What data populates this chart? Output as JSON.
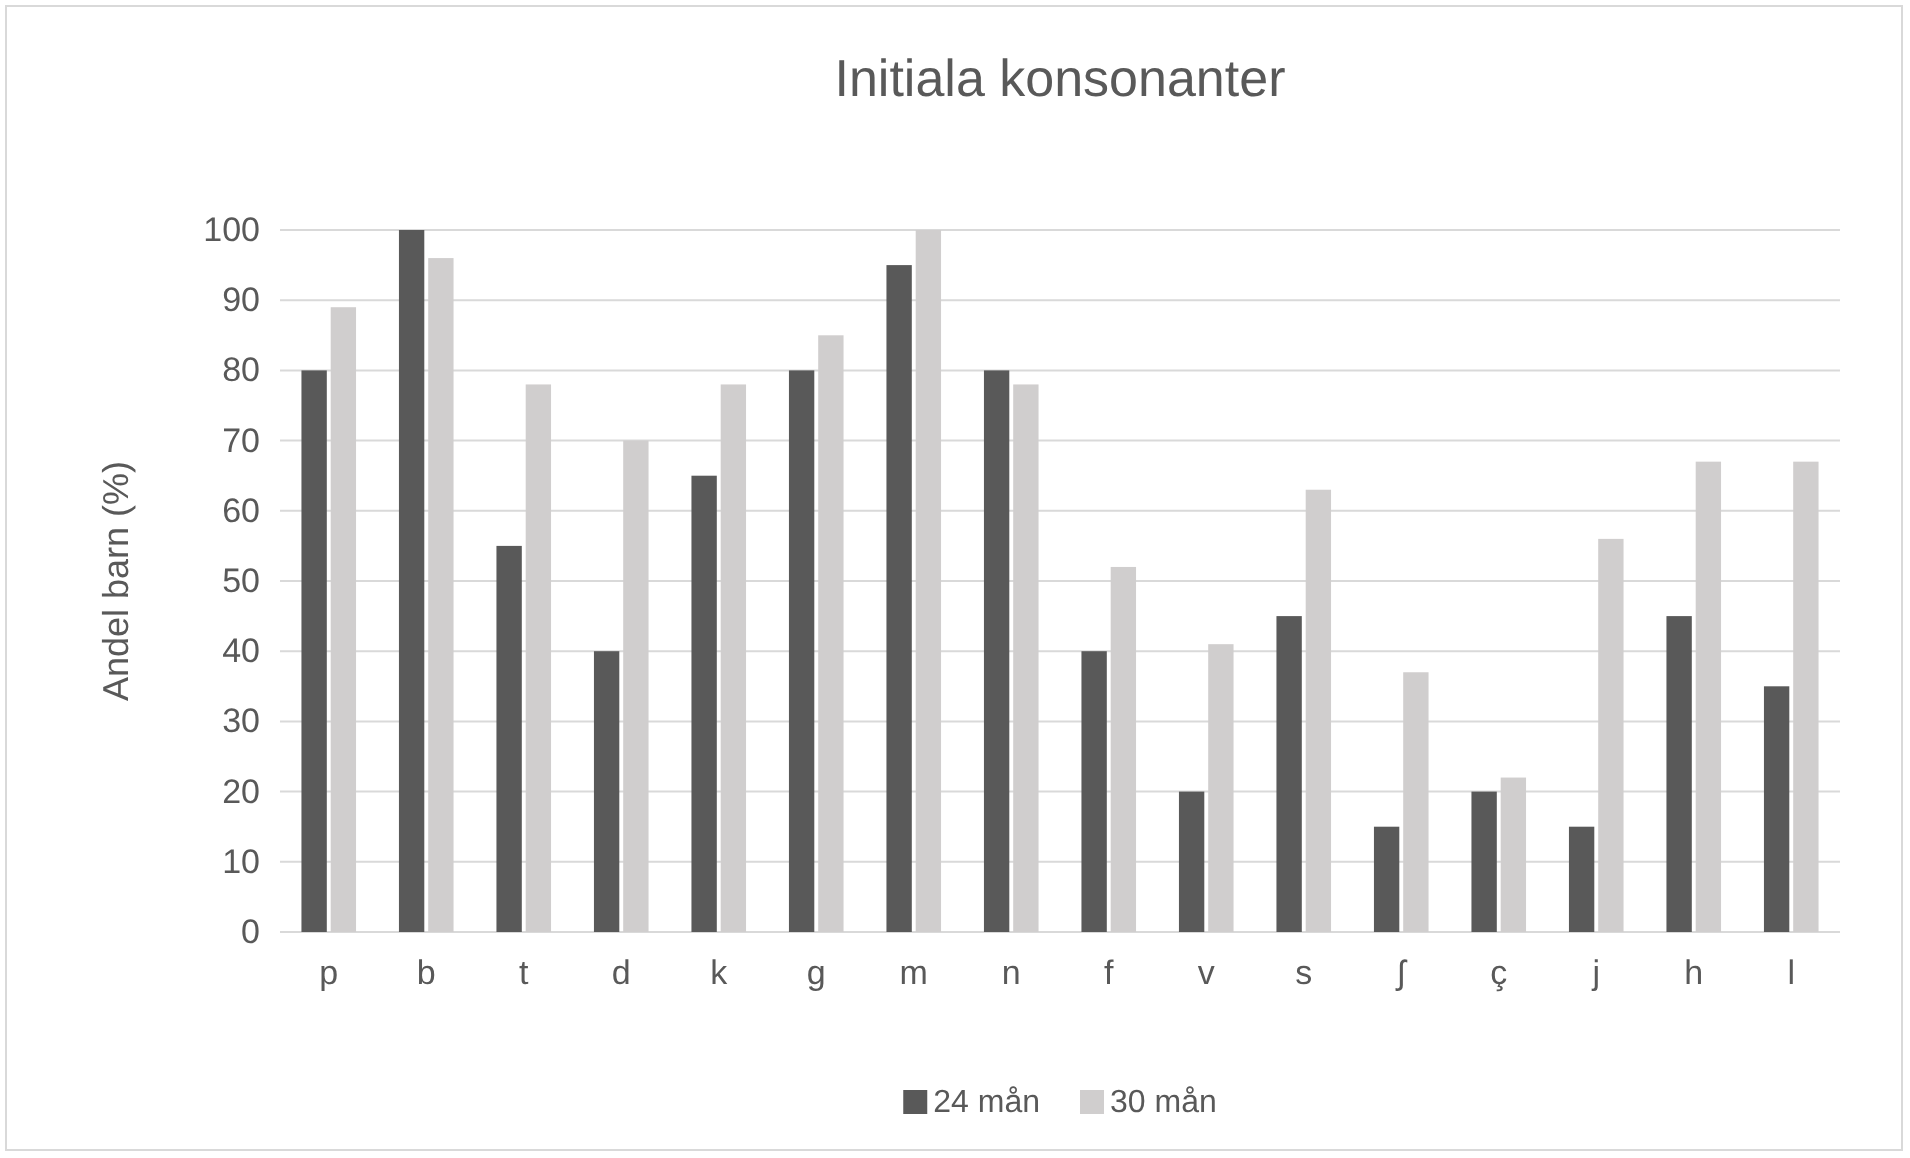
{
  "chart_data": {
    "type": "bar",
    "title": "Initiala konsonanter",
    "ylabel": "Andel barn (%)",
    "categories": [
      "p",
      "b",
      "t",
      "d",
      "k",
      "g",
      "m",
      "n",
      "f",
      "v",
      "s",
      "ʃ",
      "ç",
      "j",
      "h",
      "l"
    ],
    "series": [
      {
        "name": "24 mån",
        "color": "#595959",
        "values": [
          80,
          100,
          55,
          40,
          65,
          80,
          95,
          80,
          40,
          20,
          45,
          15,
          20,
          15,
          45,
          35
        ]
      },
      {
        "name": "30 mån",
        "color": "#d0cece",
        "values": [
          89,
          96,
          78,
          70,
          78,
          85,
          100,
          78,
          52,
          41,
          63,
          37,
          22,
          56,
          67,
          67
        ]
      }
    ],
    "ylim": [
      0,
      100
    ],
    "yticks": [
      0,
      10,
      20,
      30,
      40,
      50,
      60,
      70,
      80,
      90,
      100
    ],
    "grid": "y",
    "legend": "bottom"
  }
}
